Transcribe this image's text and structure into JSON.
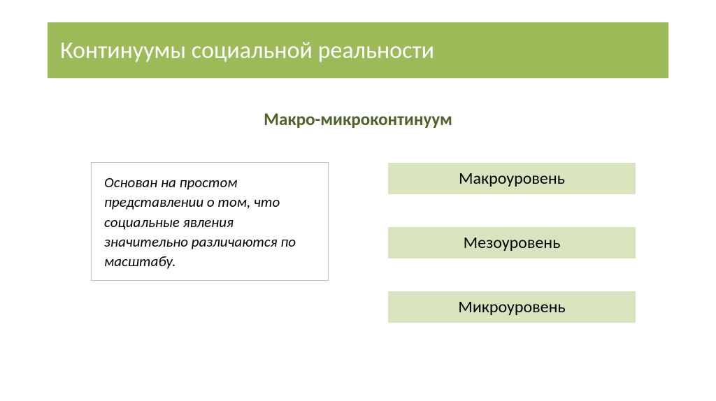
{
  "colors": {
    "title_bg": "#9bbb59",
    "title_text": "#ffffff",
    "subtitle_text": "#4f6228",
    "desc_border": "#c0c0c0",
    "desc_bg": "#ffffff",
    "desc_text": "#000000",
    "level_bg": "#d7e4bd",
    "level_border": "#ffffff",
    "level_text": "#000000"
  },
  "title": "Континуумы социальной реальности",
  "subtitle": "Макро-микроконтинуум",
  "description": "Основан на простом представлении о том, что социальные явления значительно различаются по масштабу.",
  "levels": [
    "Макроуровень",
    "Мезоуровень",
    "Микроуровень"
  ]
}
